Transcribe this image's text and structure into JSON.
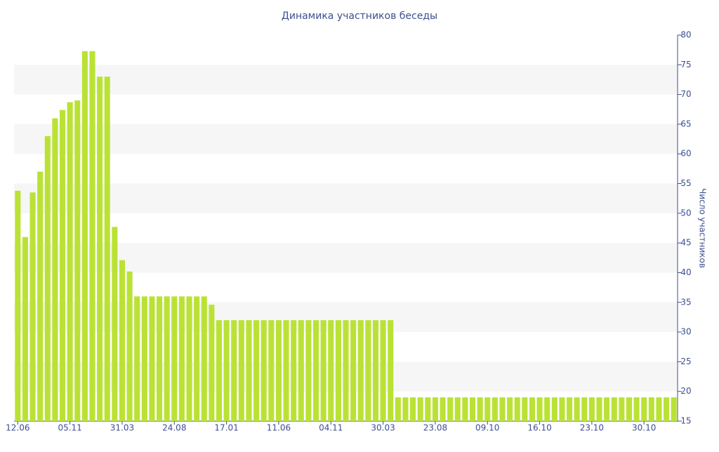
{
  "chart_data": {
    "type": "bar",
    "title": "Динамика участников беседы",
    "y_label": "Число участников",
    "categories": [
      "12.06",
      null,
      null,
      null,
      null,
      null,
      null,
      "05.11",
      null,
      null,
      null,
      null,
      null,
      null,
      "31.03",
      null,
      null,
      null,
      null,
      null,
      null,
      "24.08",
      null,
      null,
      null,
      null,
      null,
      null,
      "17.01",
      null,
      null,
      null,
      null,
      null,
      null,
      "11.06",
      null,
      null,
      null,
      null,
      null,
      null,
      "04.11",
      null,
      null,
      null,
      null,
      null,
      null,
      "30.03",
      null,
      null,
      null,
      null,
      null,
      null,
      "23.08",
      null,
      null,
      null,
      null,
      null,
      null,
      "09.10",
      null,
      null,
      null,
      null,
      null,
      null,
      "16.10",
      null,
      null,
      null,
      null,
      null,
      null,
      "23.10",
      null,
      null,
      null,
      null,
      null,
      null,
      "30.10",
      null,
      null,
      null,
      null
    ],
    "values": [
      53.8,
      46,
      53.5,
      57,
      63,
      66,
      67.4,
      68.7,
      69,
      77.3,
      77.3,
      73,
      73,
      47.7,
      42.1,
      40.2,
      36,
      36,
      36,
      36,
      36,
      36,
      36,
      36,
      36,
      36,
      34.6,
      32,
      32,
      32,
      32,
      32,
      32,
      32,
      32,
      32,
      32,
      32,
      32,
      32,
      32,
      32,
      32,
      32,
      32,
      32,
      32,
      32,
      32,
      32,
      32,
      19,
      19,
      19,
      19,
      19,
      19,
      19,
      19,
      19,
      19,
      19,
      19,
      19,
      19,
      19,
      19,
      19,
      19,
      19,
      19,
      19,
      19,
      19,
      19,
      19,
      19,
      19,
      19,
      19,
      19,
      19,
      19,
      19,
      19,
      19,
      19,
      19,
      19
    ],
    "color": "#bae235",
    "ylim": [
      15,
      80
    ],
    "yticks": [
      15,
      20,
      25,
      30,
      35,
      40,
      45,
      50,
      55,
      60,
      65,
      70,
      75,
      80
    ],
    "grid": true
  }
}
